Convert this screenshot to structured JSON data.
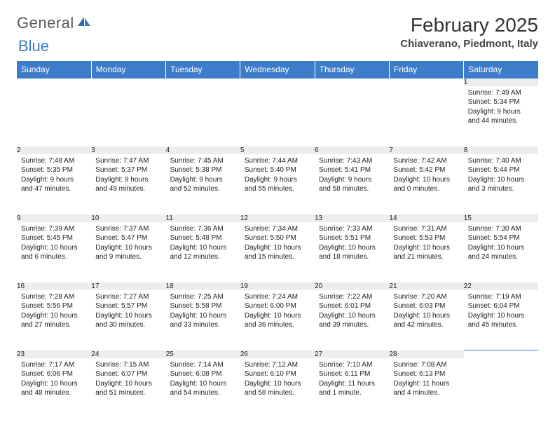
{
  "logo": {
    "word1": "General",
    "word2": "Blue"
  },
  "title": "February 2025",
  "location": "Chiaverano, Piedmont, Italy",
  "colors": {
    "header_bg": "#3d7cc9",
    "header_text": "#ffffff",
    "daynum_bg": "#ededed",
    "rule": "#3d7cc9",
    "logo_gray": "#5a5a5a",
    "logo_blue": "#3d7cc9"
  },
  "day_headers": [
    "Sunday",
    "Monday",
    "Tuesday",
    "Wednesday",
    "Thursday",
    "Friday",
    "Saturday"
  ],
  "weeks": [
    [
      null,
      null,
      null,
      null,
      null,
      null,
      {
        "n": "1",
        "sunrise": "7:49 AM",
        "sunset": "5:34 PM",
        "daylight": "9 hours and 44 minutes."
      }
    ],
    [
      {
        "n": "2",
        "sunrise": "7:48 AM",
        "sunset": "5:35 PM",
        "daylight": "9 hours and 47 minutes."
      },
      {
        "n": "3",
        "sunrise": "7:47 AM",
        "sunset": "5:37 PM",
        "daylight": "9 hours and 49 minutes."
      },
      {
        "n": "4",
        "sunrise": "7:45 AM",
        "sunset": "5:38 PM",
        "daylight": "9 hours and 52 minutes."
      },
      {
        "n": "5",
        "sunrise": "7:44 AM",
        "sunset": "5:40 PM",
        "daylight": "9 hours and 55 minutes."
      },
      {
        "n": "6",
        "sunrise": "7:43 AM",
        "sunset": "5:41 PM",
        "daylight": "9 hours and 58 minutes."
      },
      {
        "n": "7",
        "sunrise": "7:42 AM",
        "sunset": "5:42 PM",
        "daylight": "10 hours and 0 minutes."
      },
      {
        "n": "8",
        "sunrise": "7:40 AM",
        "sunset": "5:44 PM",
        "daylight": "10 hours and 3 minutes."
      }
    ],
    [
      {
        "n": "9",
        "sunrise": "7:39 AM",
        "sunset": "5:45 PM",
        "daylight": "10 hours and 6 minutes."
      },
      {
        "n": "10",
        "sunrise": "7:37 AM",
        "sunset": "5:47 PM",
        "daylight": "10 hours and 9 minutes."
      },
      {
        "n": "11",
        "sunrise": "7:36 AM",
        "sunset": "5:48 PM",
        "daylight": "10 hours and 12 minutes."
      },
      {
        "n": "12",
        "sunrise": "7:34 AM",
        "sunset": "5:50 PM",
        "daylight": "10 hours and 15 minutes."
      },
      {
        "n": "13",
        "sunrise": "7:33 AM",
        "sunset": "5:51 PM",
        "daylight": "10 hours and 18 minutes."
      },
      {
        "n": "14",
        "sunrise": "7:31 AM",
        "sunset": "5:53 PM",
        "daylight": "10 hours and 21 minutes."
      },
      {
        "n": "15",
        "sunrise": "7:30 AM",
        "sunset": "5:54 PM",
        "daylight": "10 hours and 24 minutes."
      }
    ],
    [
      {
        "n": "16",
        "sunrise": "7:28 AM",
        "sunset": "5:56 PM",
        "daylight": "10 hours and 27 minutes."
      },
      {
        "n": "17",
        "sunrise": "7:27 AM",
        "sunset": "5:57 PM",
        "daylight": "10 hours and 30 minutes."
      },
      {
        "n": "18",
        "sunrise": "7:25 AM",
        "sunset": "5:58 PM",
        "daylight": "10 hours and 33 minutes."
      },
      {
        "n": "19",
        "sunrise": "7:24 AM",
        "sunset": "6:00 PM",
        "daylight": "10 hours and 36 minutes."
      },
      {
        "n": "20",
        "sunrise": "7:22 AM",
        "sunset": "6:01 PM",
        "daylight": "10 hours and 39 minutes."
      },
      {
        "n": "21",
        "sunrise": "7:20 AM",
        "sunset": "6:03 PM",
        "daylight": "10 hours and 42 minutes."
      },
      {
        "n": "22",
        "sunrise": "7:19 AM",
        "sunset": "6:04 PM",
        "daylight": "10 hours and 45 minutes."
      }
    ],
    [
      {
        "n": "23",
        "sunrise": "7:17 AM",
        "sunset": "6:06 PM",
        "daylight": "10 hours and 48 minutes."
      },
      {
        "n": "24",
        "sunrise": "7:15 AM",
        "sunset": "6:07 PM",
        "daylight": "10 hours and 51 minutes."
      },
      {
        "n": "25",
        "sunrise": "7:14 AM",
        "sunset": "6:08 PM",
        "daylight": "10 hours and 54 minutes."
      },
      {
        "n": "26",
        "sunrise": "7:12 AM",
        "sunset": "6:10 PM",
        "daylight": "10 hours and 58 minutes."
      },
      {
        "n": "27",
        "sunrise": "7:10 AM",
        "sunset": "6:11 PM",
        "daylight": "11 hours and 1 minute."
      },
      {
        "n": "28",
        "sunrise": "7:08 AM",
        "sunset": "6:13 PM",
        "daylight": "11 hours and 4 minutes."
      },
      null
    ]
  ],
  "labels": {
    "sunrise": "Sunrise:",
    "sunset": "Sunset:",
    "daylight": "Daylight:"
  }
}
